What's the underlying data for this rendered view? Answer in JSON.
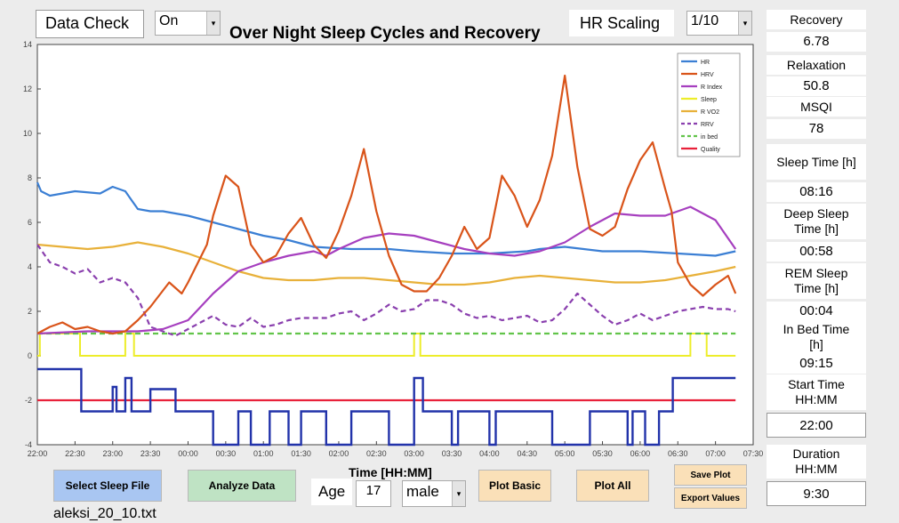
{
  "header": {
    "data_check_label": "Data Check",
    "data_check_value": "On",
    "title": "Over Night Sleep Cycles and Recovery",
    "hr_scaling_label": "HR Scaling",
    "hr_scaling_value": "1/10"
  },
  "metrics": [
    {
      "label": "Recovery",
      "value": "6.78"
    },
    {
      "label": "Relaxation",
      "value": "50.8"
    },
    {
      "label": "MSQI",
      "value": "78"
    },
    {
      "label": "Sleep Time [h]",
      "value": "08:16"
    },
    {
      "label": "Deep Sleep Time [h]",
      "value": "00:58"
    },
    {
      "label": "REM Sleep Time [h]",
      "value": "00:04"
    },
    {
      "label": "In Bed Time [h]",
      "value": "09:15"
    },
    {
      "label": "Start Time HH:MM",
      "value": "22:00"
    },
    {
      "label": "Duration HH:MM",
      "value": "9:30"
    }
  ],
  "controls": {
    "select_sleep_file": "Select Sleep File",
    "analyze_data": "Analyze Data",
    "age_label": "Age",
    "age_value": "17",
    "gender_value": "male",
    "plot_basic": "Plot Basic",
    "plot_all": "Plot All",
    "save_plot": "Save Plot",
    "export_values": "Export Values",
    "filename": "aleksi_20_10.txt"
  },
  "chart_data": {
    "type": "line",
    "xlabel": "Time [HH:MM]",
    "ylabel": "",
    "xlim": [
      0,
      570
    ],
    "ylim": [
      -4,
      14
    ],
    "x_ticks": [
      "22:00",
      "22:30",
      "23:00",
      "23:30",
      "00:00",
      "00:30",
      "01:00",
      "01:30",
      "02:00",
      "02:30",
      "03:00",
      "03:30",
      "04:00",
      "04:30",
      "05:00",
      "05:30",
      "06:00",
      "06:30",
      "07:00",
      "07:30"
    ],
    "y_ticks": [
      -4,
      -2,
      0,
      2,
      4,
      6,
      8,
      10,
      12,
      14
    ],
    "legend": [
      {
        "name": "HR",
        "color": "#3b7fd4",
        "dash": false
      },
      {
        "name": "HRV",
        "color": "#d9541a",
        "dash": false
      },
      {
        "name": "R Index",
        "color": "#a63fbf",
        "dash": false
      },
      {
        "name": "Sleep",
        "color": "#eded2a",
        "dash": false
      },
      {
        "name": "R VO2",
        "color": "#e8b13a",
        "dash": false
      },
      {
        "name": "RRV",
        "color": "#8a3fae",
        "dash": true
      },
      {
        "name": "in bed",
        "color": "#62c44a",
        "dash": true
      },
      {
        "name": "Quality",
        "color": "#e8213a",
        "dash": false
      }
    ],
    "series": [
      {
        "name": "HR",
        "x": [
          0,
          3,
          10,
          30,
          50,
          60,
          70,
          75,
          80,
          90,
          100,
          120,
          140,
          160,
          180,
          200,
          220,
          250,
          280,
          300,
          330,
          360,
          390,
          400,
          420,
          450,
          480,
          510,
          540,
          556
        ],
        "y": [
          7.8,
          7.4,
          7.2,
          7.4,
          7.3,
          7.6,
          7.4,
          7.0,
          6.6,
          6.5,
          6.5,
          6.3,
          6.0,
          5.7,
          5.4,
          5.2,
          4.9,
          4.8,
          4.8,
          4.7,
          4.6,
          4.6,
          4.7,
          4.8,
          4.9,
          4.7,
          4.7,
          4.6,
          4.5,
          4.7
        ]
      },
      {
        "name": "HRV",
        "x": [
          0,
          10,
          20,
          30,
          40,
          50,
          60,
          70,
          80,
          90,
          105,
          115,
          120,
          135,
          140,
          150,
          160,
          170,
          180,
          190,
          200,
          210,
          220,
          230,
          240,
          250,
          260,
          270,
          280,
          290,
          300,
          310,
          320,
          330,
          340,
          350,
          360,
          370,
          380,
          390,
          400,
          410,
          420,
          430,
          440,
          450,
          460,
          470,
          480,
          490,
          500,
          505,
          510,
          520,
          530,
          540,
          550,
          556
        ],
        "y": [
          1.0,
          1.3,
          1.5,
          1.2,
          1.3,
          1.1,
          1.0,
          1.1,
          1.6,
          2.2,
          3.3,
          2.8,
          3.3,
          5.0,
          6.3,
          8.1,
          7.6,
          5.0,
          4.2,
          4.5,
          5.5,
          6.2,
          5.0,
          4.4,
          5.6,
          7.2,
          9.3,
          6.5,
          4.5,
          3.2,
          2.9,
          2.9,
          3.5,
          4.5,
          5.8,
          4.8,
          5.3,
          8.1,
          7.2,
          5.8,
          7.0,
          9.0,
          12.6,
          8.5,
          5.7,
          5.4,
          5.8,
          7.5,
          8.8,
          9.6,
          7.5,
          6.5,
          4.2,
          3.2,
          2.7,
          3.2,
          3.6,
          2.8
        ]
      },
      {
        "name": "R Index",
        "x": [
          0,
          40,
          80,
          100,
          120,
          140,
          160,
          180,
          200,
          220,
          230,
          240,
          260,
          280,
          300,
          320,
          340,
          360,
          380,
          400,
          420,
          440,
          460,
          480,
          500,
          510,
          520,
          540,
          556
        ],
        "y": [
          1.0,
          1.1,
          1.1,
          1.2,
          1.6,
          2.8,
          3.8,
          4.2,
          4.5,
          4.7,
          4.5,
          4.8,
          5.3,
          5.5,
          5.4,
          5.1,
          4.8,
          4.6,
          4.5,
          4.7,
          5.1,
          5.8,
          6.4,
          6.3,
          6.3,
          6.5,
          6.7,
          6.1,
          4.8
        ]
      },
      {
        "name": "R VO2",
        "x": [
          0,
          20,
          40,
          60,
          70,
          80,
          100,
          120,
          140,
          160,
          180,
          200,
          220,
          240,
          260,
          280,
          300,
          320,
          340,
          360,
          380,
          400,
          420,
          440,
          460,
          480,
          500,
          520,
          540,
          556
        ],
        "y": [
          5.0,
          4.9,
          4.8,
          4.9,
          5.0,
          5.1,
          4.9,
          4.6,
          4.2,
          3.8,
          3.5,
          3.4,
          3.4,
          3.5,
          3.5,
          3.4,
          3.3,
          3.2,
          3.2,
          3.3,
          3.5,
          3.6,
          3.5,
          3.4,
          3.3,
          3.3,
          3.4,
          3.6,
          3.8,
          4.0
        ]
      },
      {
        "name": "RRV",
        "x": [
          0,
          10,
          20,
          30,
          40,
          50,
          60,
          70,
          80,
          90,
          100,
          110,
          120,
          130,
          140,
          150,
          160,
          170,
          180,
          190,
          200,
          210,
          220,
          230,
          240,
          250,
          260,
          270,
          280,
          290,
          300,
          310,
          320,
          330,
          340,
          350,
          360,
          370,
          380,
          390,
          400,
          410,
          420,
          430,
          440,
          450,
          460,
          470,
          480,
          490,
          500,
          510,
          520,
          530,
          540,
          550,
          556
        ],
        "y": [
          5.0,
          4.2,
          4.0,
          3.7,
          3.9,
          3.3,
          3.5,
          3.3,
          2.6,
          1.3,
          1.1,
          0.9,
          1.2,
          1.5,
          1.8,
          1.4,
          1.3,
          1.7,
          1.3,
          1.4,
          1.6,
          1.7,
          1.7,
          1.7,
          1.9,
          2.0,
          1.6,
          1.9,
          2.3,
          2.0,
          2.1,
          2.5,
          2.5,
          2.3,
          1.9,
          1.7,
          1.8,
          1.6,
          1.7,
          1.8,
          1.5,
          1.6,
          2.1,
          2.8,
          2.3,
          1.8,
          1.4,
          1.6,
          1.9,
          1.6,
          1.8,
          2.0,
          2.1,
          2.2,
          2.1,
          2.1,
          2.0
        ]
      },
      {
        "name": "in bed",
        "x": [
          0,
          556
        ],
        "y": [
          1.0,
          1.0
        ]
      },
      {
        "name": "Quality",
        "x": [
          0,
          556
        ],
        "y": [
          -2.0,
          -2.0
        ]
      }
    ],
    "sleep_steps": {
      "x": [
        0,
        2,
        2,
        34,
        34,
        70,
        70,
        77,
        77,
        300,
        300,
        305,
        305,
        520,
        520,
        533,
        533,
        556
      ],
      "y": [
        0,
        0,
        1,
        1,
        0,
        0,
        1,
        1,
        0,
        0,
        1,
        1,
        0,
        0,
        1,
        1,
        0,
        0
      ]
    },
    "hypnogram": {
      "x": [
        0,
        35,
        35,
        60,
        60,
        63,
        63,
        70,
        70,
        75,
        75,
        90,
        90,
        110,
        110,
        140,
        140,
        160,
        160,
        170,
        170,
        185,
        185,
        200,
        200,
        210,
        210,
        230,
        230,
        250,
        250,
        280,
        280,
        300,
        300,
        307,
        307,
        330,
        330,
        335,
        335,
        360,
        360,
        365,
        365,
        410,
        410,
        440,
        440,
        470,
        470,
        474,
        474,
        484,
        484,
        495,
        495,
        506,
        506,
        525,
        525,
        556
      ],
      "y": [
        -0.6,
        -0.6,
        -2.5,
        -2.5,
        -1.4,
        -1.4,
        -2.5,
        -2.5,
        -1.0,
        -1.0,
        -2.5,
        -2.5,
        -1.5,
        -1.5,
        -2.5,
        -2.5,
        -4.0,
        -4.0,
        -2.5,
        -2.5,
        -4.0,
        -4.0,
        -2.5,
        -2.5,
        -4.0,
        -4.0,
        -2.5,
        -2.5,
        -4.0,
        -4.0,
        -2.5,
        -2.5,
        -4.0,
        -4.0,
        -1.0,
        -1.0,
        -2.5,
        -2.5,
        -4.0,
        -4.0,
        -2.5,
        -2.5,
        -4.0,
        -4.0,
        -2.5,
        -2.5,
        -4.0,
        -4.0,
        -2.5,
        -2.5,
        -4.0,
        -4.0,
        -2.5,
        -2.5,
        -4.0,
        -4.0,
        -2.5,
        -2.5,
        -1.0,
        -1.0,
        -1.0,
        -1.0
      ]
    }
  }
}
